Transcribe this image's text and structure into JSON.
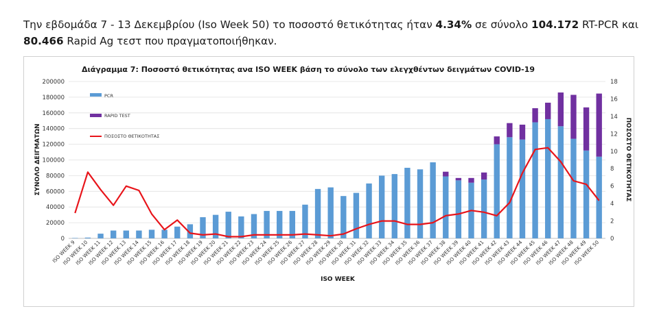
{
  "intro": {
    "part1": "Την εβδομάδα 7 - 13 Δεκεμβρίου (Iso Week 50) το ποσοστό θετικότητας ήταν ",
    "positivity": "4.34%",
    "part2": " σε σύνολο ",
    "pcr_total": "104.172",
    "part3": " RT-PCR και ",
    "rapid_total": "80.466",
    "part4": " Rapid Ag τεστ που πραγματοποιήθηκαν."
  },
  "colors": {
    "pcr": "#5b9bd5",
    "rapid": "#7030a0",
    "positivity": "#e8141a"
  },
  "chart_data": {
    "type": "bar",
    "stacked": true,
    "title": "Διάγραμμα 7: Ποσοστό θετικότητας ανα ISO WEEK  βάση το σύνολο των ελεγχθέντων δειγμάτων COVID-19",
    "xlabel": "ISO WEEK",
    "ylabel": "ΣΥΝΟΛΟ   ΔΕΙΓΜΑΤΩΝ",
    "y2label": "ΠΟΣΟΣΤΟ ΘΕΤΙΚΟΤΗΤΑΣ",
    "ylim": [
      0,
      200000
    ],
    "y2lim": [
      0,
      18
    ],
    "yticks": [
      "0",
      "20000",
      "40000",
      "60000",
      "80000",
      "100000",
      "120000",
      "140000",
      "160000",
      "180000",
      "200000"
    ],
    "y2ticks": [
      "0",
      "2",
      "4",
      "6",
      "8",
      "10",
      "12",
      "14",
      "16",
      "18"
    ],
    "legend_position": "top-left",
    "categories": [
      "ISO WEEK 9",
      "ISO WEEK 10",
      "ISO WEEK 11",
      "ISO WEEK 12",
      "ISO WEEK 13",
      "ISO WEEK 14",
      "ISO WEEK 15",
      "ISO WEEK 16",
      "ISO WEEK 17",
      "ISO WEEK 18",
      "ISO WEEK 19",
      "ISO WEEK 20",
      "ISO WEEK 21",
      "ISO WEEK 22",
      "ISO WEEK 23",
      "ISO WEEK 24",
      "ISO WEEK 25",
      "ISO WEEK 26",
      "ISO WEEK 27",
      "ISO WEEK 28",
      "ISO WEEK 29",
      "ISO WEEK 30",
      "ISO WEEK 31",
      "ISO WEEK 32",
      "ISO WEEK 33",
      "ISO WEEK 34",
      "ISO WEEK 35",
      "ISO WEEK 36",
      "ISO WEEK 37",
      "ISO WEEK 38",
      "ISO WEEK 39",
      "ISO WEEK 40",
      "ISO WEEK 41",
      "ISO WEEK 42",
      "ISO WEEK 43",
      "ISO WEEK 44",
      "ISO WEEK 45",
      "ISO WEEK 46",
      "ISO WEEK 47",
      "ISO WEEK 48",
      "ISO WEEK 49",
      "ISO WEEK 50"
    ],
    "series": [
      {
        "name": "PCR",
        "kind": "bar",
        "axis": "left",
        "values": [
          500,
          1000,
          6000,
          10000,
          10000,
          10000,
          11000,
          11000,
          15000,
          18000,
          27000,
          30000,
          34000,
          28000,
          31000,
          35000,
          35000,
          35000,
          43000,
          63000,
          65000,
          54000,
          58000,
          70000,
          80000,
          82000,
          90000,
          88000,
          97000,
          79000,
          74000,
          71000,
          75000,
          120000,
          129000,
          126000,
          148000,
          152000,
          143000,
          127000,
          112000,
          104172
        ]
      },
      {
        "name": "RAPID TEST",
        "kind": "bar",
        "axis": "left",
        "values": [
          0,
          0,
          0,
          0,
          0,
          0,
          0,
          0,
          0,
          0,
          0,
          0,
          0,
          0,
          0,
          0,
          0,
          0,
          0,
          0,
          0,
          0,
          0,
          0,
          0,
          0,
          0,
          0,
          0,
          6000,
          3000,
          6000,
          9000,
          10000,
          18000,
          19000,
          18000,
          21000,
          43000,
          56000,
          55000,
          80466
        ]
      },
      {
        "name": "ΠΟΣΟΣΤΟ ΘΕΤΙΚΟΤΗΤΑΣ",
        "kind": "line",
        "axis": "right",
        "values": [
          2.9,
          7.6,
          5.6,
          3.8,
          6.0,
          5.5,
          2.8,
          1.0,
          2.1,
          0.6,
          0.4,
          0.5,
          0.2,
          0.2,
          0.4,
          0.4,
          0.4,
          0.4,
          0.5,
          0.4,
          0.3,
          0.5,
          1.1,
          1.6,
          2.0,
          2.0,
          1.6,
          1.6,
          1.8,
          2.6,
          2.8,
          3.2,
          3.0,
          2.6,
          4.1,
          7.5,
          10.2,
          10.4,
          8.8,
          6.6,
          6.2,
          4.34
        ]
      }
    ]
  }
}
